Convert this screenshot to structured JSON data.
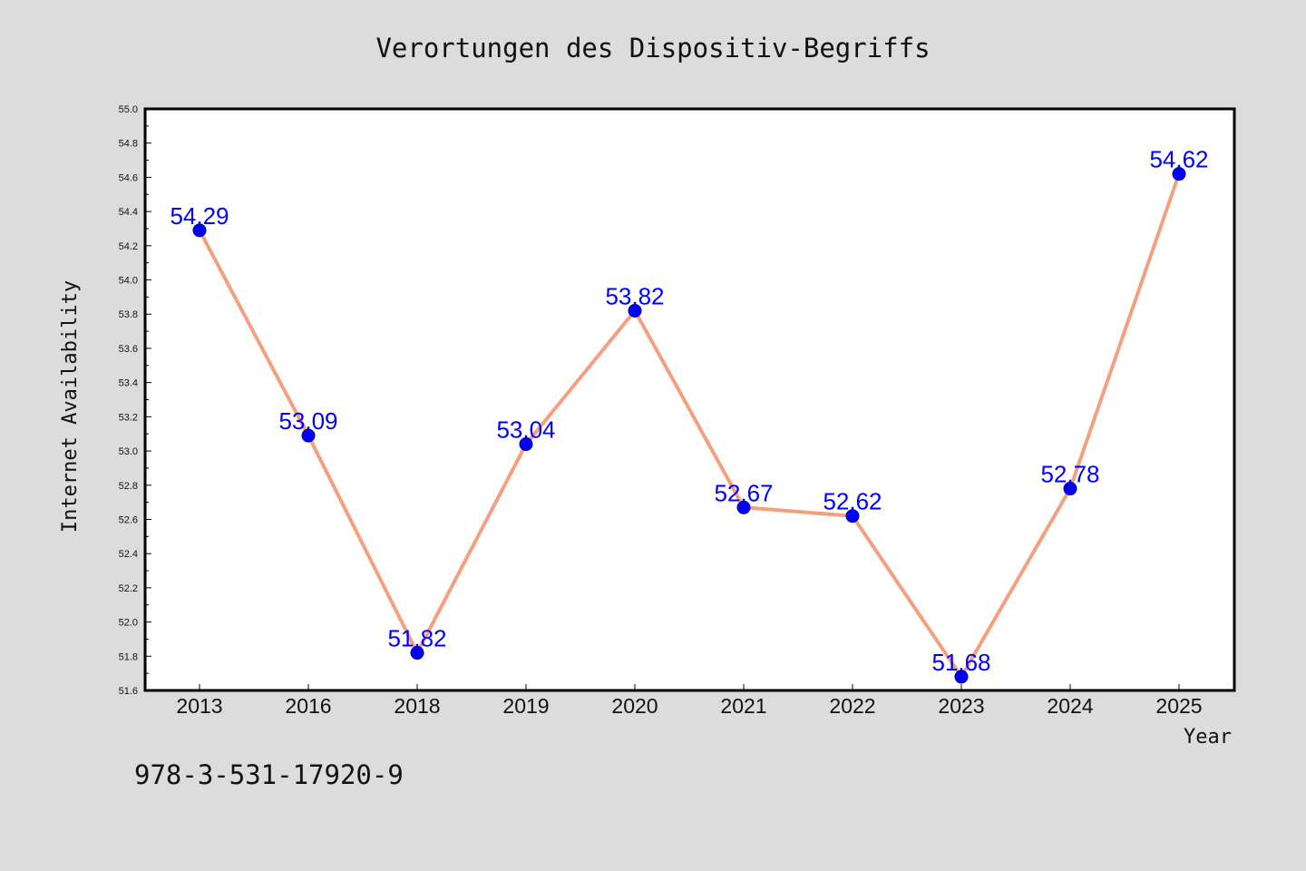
{
  "chart_data": {
    "type": "line",
    "title": "Verortungen des Dispositiv-Begriffs",
    "xlabel": "Year",
    "ylabel": "Internet Availability",
    "categories": [
      "2013",
      "2016",
      "2018",
      "2019",
      "2020",
      "2021",
      "2022",
      "2023",
      "2024",
      "2025"
    ],
    "series": [
      {
        "values": [
          54.29,
          53.09,
          51.82,
          53.04,
          53.82,
          52.67,
          52.62,
          51.68,
          52.78,
          54.62
        ]
      }
    ],
    "ylim": [
      51.6,
      55.0
    ],
    "yticks": [
      "51.6",
      "51.8",
      "52.0",
      "52.2",
      "52.4",
      "52.6",
      "52.8",
      "53.0",
      "53.2",
      "53.4",
      "53.6",
      "53.8",
      "54.0",
      "54.2",
      "54.4",
      "54.6",
      "54.8",
      "55.0"
    ],
    "grid": false,
    "legend": "none",
    "data_labels": true
  },
  "footer": {
    "code": "978-3-531-17920-9"
  },
  "colors": {
    "line": "#f4a07f",
    "marker": "#0000ff",
    "label": "#0000ff",
    "background": "#dcdcdc",
    "plot_background": "#ffffff"
  }
}
